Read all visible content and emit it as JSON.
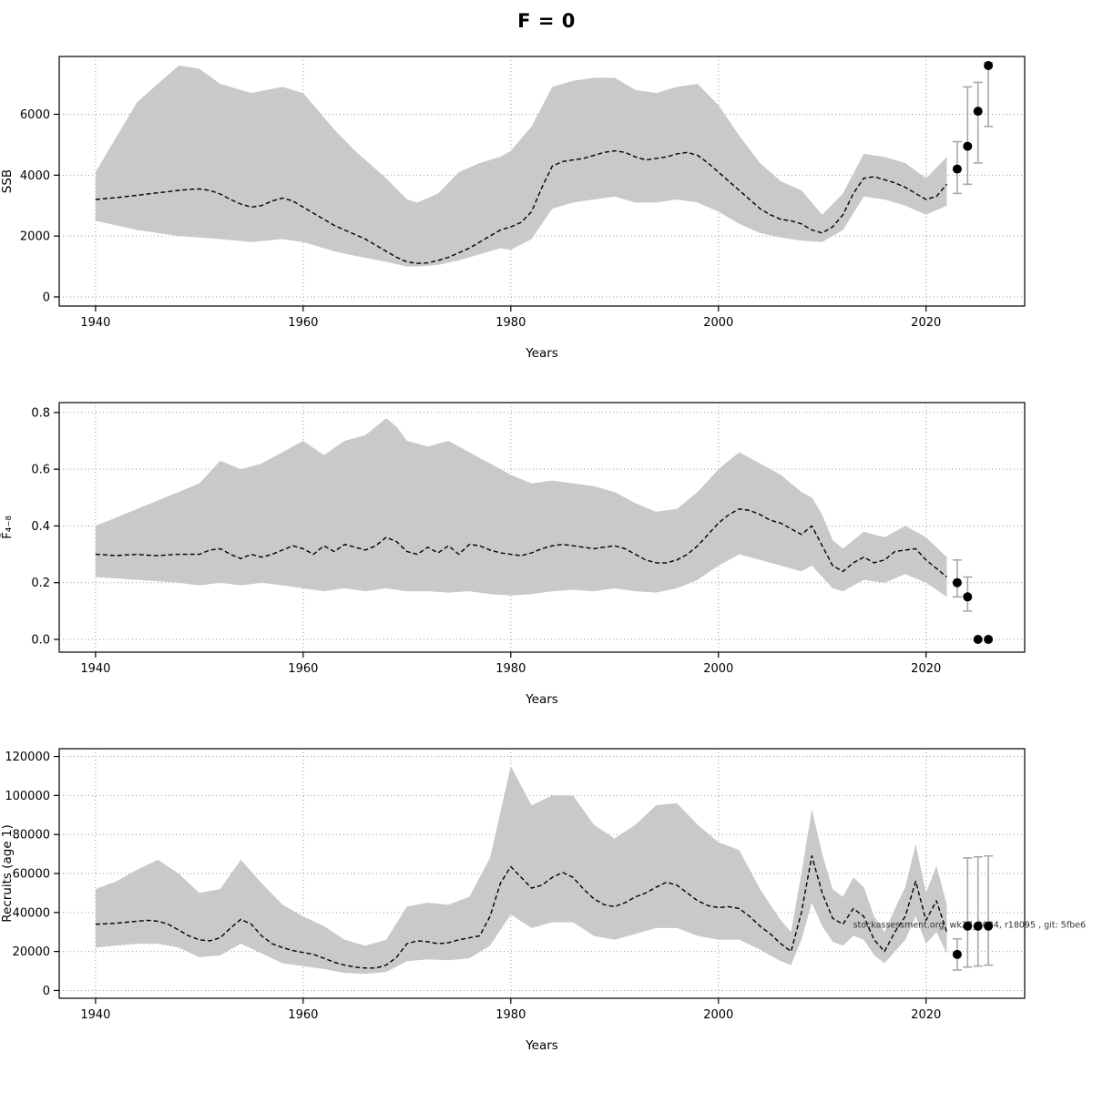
{
  "title": "F = 0",
  "watermark": "stockassessment.org, wk27_2024, r18095 , git: 5fbe6",
  "colors": {
    "band": "#c9c9c9",
    "median": "#000000",
    "error_bar": "#a8a8a8",
    "forecast_dot": "#000000"
  },
  "chart_data": [
    {
      "type": "line",
      "panel": "ssb",
      "svg_name": "ssb-chart",
      "xlabel": "Years",
      "ylabel": "SSB",
      "xlim": [
        1936.5,
        2029.5
      ],
      "ylim": [
        -300,
        7900
      ],
      "xticks": [
        1940,
        1960,
        1980,
        2000,
        2020
      ],
      "yticks": {
        "values": [
          0,
          2000,
          4000,
          6000
        ],
        "labels": [
          "0",
          "2000",
          "4000",
          "6000"
        ]
      },
      "grid": true,
      "band": {
        "years": [
          1940,
          1944,
          1948,
          1950,
          1952,
          1955,
          1958,
          1960,
          1963,
          1965,
          1968,
          1970,
          1971,
          1973,
          1975,
          1977,
          1979,
          1980,
          1982,
          1984,
          1986,
          1988,
          1990,
          1992,
          1994,
          1996,
          1998,
          2000,
          2002,
          2004,
          2006,
          2008,
          2010,
          2012,
          2014,
          2016,
          2018,
          2020,
          2022
        ],
        "lo": [
          2500,
          2200,
          2000,
          1950,
          1900,
          1800,
          1900,
          1800,
          1500,
          1350,
          1150,
          1000,
          1000,
          1050,
          1200,
          1400,
          1600,
          1550,
          1900,
          2900,
          3100,
          3200,
          3300,
          3100,
          3100,
          3200,
          3100,
          2800,
          2400,
          2100,
          1950,
          1850,
          1800,
          2200,
          3300,
          3200,
          3000,
          2700,
          3000
        ],
        "hi": [
          4100,
          6400,
          7600,
          7500,
          7000,
          6700,
          6900,
          6700,
          5500,
          4800,
          3900,
          3200,
          3100,
          3400,
          4100,
          4400,
          4600,
          4800,
          5600,
          6900,
          7100,
          7200,
          7200,
          6800,
          6700,
          6900,
          7000,
          6300,
          5300,
          4400,
          3800,
          3500,
          2700,
          3400,
          4700,
          4600,
          4400,
          3900,
          4600
        ]
      },
      "median": {
        "year_start": 1940,
        "values": [
          3200,
          3230,
          3260,
          3300,
          3340,
          3380,
          3420,
          3460,
          3500,
          3530,
          3550,
          3500,
          3380,
          3200,
          3050,
          2950,
          3000,
          3150,
          3250,
          3150,
          2950,
          2750,
          2550,
          2350,
          2200,
          2050,
          1900,
          1700,
          1500,
          1300,
          1150,
          1100,
          1120,
          1200,
          1300,
          1450,
          1600,
          1800,
          2000,
          2200,
          2300,
          2450,
          2800,
          3600,
          4300,
          4450,
          4500,
          4550,
          4650,
          4750,
          4800,
          4750,
          4600,
          4500,
          4550,
          4600,
          4700,
          4750,
          4650,
          4400,
          4100,
          3800,
          3500,
          3200,
          2900,
          2700,
          2550,
          2500,
          2400,
          2200,
          2100,
          2300,
          2700,
          3400,
          3900,
          3950,
          3850,
          3750,
          3600,
          3400,
          3200,
          3300,
          3700
        ]
      },
      "forecast": {
        "years": [
          2023,
          2024,
          2025,
          2026
        ],
        "values": [
          4200,
          4950,
          6100,
          7600
        ],
        "lo": [
          3400,
          3700,
          4400,
          5600
        ],
        "hi": [
          5100,
          6900,
          7050,
          7700
        ]
      }
    },
    {
      "type": "line",
      "panel": "f",
      "svg_name": "f-chart",
      "xlabel": "Years",
      "ylabel": "F̄₄₋₈",
      "xlim": [
        1936.5,
        2029.5
      ],
      "ylim": [
        -0.045,
        0.835
      ],
      "xticks": [
        1940,
        1960,
        1980,
        2000,
        2020
      ],
      "yticks": {
        "values": [
          0.0,
          0.2,
          0.4,
          0.6,
          0.8
        ],
        "labels": [
          "0.0",
          "0.2",
          "0.4",
          "0.6",
          "0.8"
        ]
      },
      "grid": true,
      "band": {
        "years": [
          1940,
          1944,
          1948,
          1950,
          1952,
          1954,
          1956,
          1958,
          1960,
          1962,
          1964,
          1966,
          1968,
          1969,
          1970,
          1972,
          1974,
          1976,
          1978,
          1980,
          1982,
          1984,
          1986,
          1988,
          1990,
          1992,
          1994,
          1996,
          1998,
          2000,
          2002,
          2004,
          2006,
          2008,
          2009,
          2010,
          2011,
          2012,
          2014,
          2016,
          2018,
          2020,
          2022
        ],
        "lo": [
          0.22,
          0.21,
          0.2,
          0.19,
          0.2,
          0.19,
          0.2,
          0.19,
          0.18,
          0.17,
          0.18,
          0.17,
          0.18,
          0.175,
          0.17,
          0.17,
          0.165,
          0.17,
          0.16,
          0.155,
          0.16,
          0.17,
          0.175,
          0.17,
          0.18,
          0.17,
          0.165,
          0.18,
          0.21,
          0.26,
          0.3,
          0.28,
          0.26,
          0.24,
          0.26,
          0.22,
          0.18,
          0.17,
          0.21,
          0.2,
          0.23,
          0.2,
          0.15
        ],
        "hi": [
          0.4,
          0.46,
          0.52,
          0.55,
          0.63,
          0.6,
          0.62,
          0.66,
          0.7,
          0.65,
          0.7,
          0.72,
          0.78,
          0.75,
          0.7,
          0.68,
          0.7,
          0.66,
          0.62,
          0.58,
          0.55,
          0.56,
          0.55,
          0.54,
          0.52,
          0.48,
          0.45,
          0.46,
          0.52,
          0.6,
          0.66,
          0.62,
          0.58,
          0.52,
          0.5,
          0.44,
          0.35,
          0.32,
          0.38,
          0.36,
          0.4,
          0.36,
          0.29
        ]
      },
      "median": {
        "year_start": 1940,
        "values": [
          0.3,
          0.298,
          0.295,
          0.298,
          0.3,
          0.297,
          0.295,
          0.298,
          0.3,
          0.3,
          0.3,
          0.315,
          0.32,
          0.3,
          0.285,
          0.3,
          0.29,
          0.3,
          0.315,
          0.33,
          0.32,
          0.3,
          0.33,
          0.31,
          0.335,
          0.325,
          0.315,
          0.33,
          0.36,
          0.345,
          0.31,
          0.3,
          0.325,
          0.305,
          0.33,
          0.3,
          0.335,
          0.33,
          0.315,
          0.305,
          0.3,
          0.295,
          0.305,
          0.32,
          0.33,
          0.335,
          0.33,
          0.325,
          0.32,
          0.325,
          0.33,
          0.32,
          0.3,
          0.28,
          0.27,
          0.27,
          0.28,
          0.3,
          0.33,
          0.37,
          0.41,
          0.44,
          0.46,
          0.455,
          0.44,
          0.42,
          0.41,
          0.39,
          0.37,
          0.4,
          0.33,
          0.26,
          0.24,
          0.27,
          0.29,
          0.27,
          0.28,
          0.31,
          0.315,
          0.32,
          0.28,
          0.25,
          0.22
        ]
      },
      "forecast": {
        "years": [
          2023,
          2024,
          2025,
          2026
        ],
        "values": [
          0.2,
          0.15,
          0.0,
          0.0
        ],
        "lo": [
          0.15,
          0.1,
          0.0,
          0.0
        ],
        "hi": [
          0.28,
          0.22,
          0.0,
          0.0
        ]
      }
    },
    {
      "type": "line",
      "panel": "recruits",
      "svg_name": "recruits-chart",
      "xlabel": "Years",
      "ylabel": "Recruits (age 1)",
      "xlim": [
        1936.5,
        2029.5
      ],
      "ylim": [
        -4000,
        124000
      ],
      "xticks": [
        1940,
        1960,
        1980,
        2000,
        2020
      ],
      "yticks": {
        "values": [
          0,
          20000,
          40000,
          60000,
          80000,
          100000,
          120000
        ],
        "labels": [
          "0",
          "20000",
          "40000",
          "60000",
          "80000",
          "100000",
          "120000"
        ]
      },
      "grid": true,
      "band": {
        "years": [
          1940,
          1942,
          1944,
          1946,
          1948,
          1950,
          1952,
          1954,
          1956,
          1958,
          1960,
          1962,
          1964,
          1966,
          1968,
          1970,
          1972,
          1974,
          1976,
          1978,
          1980,
          1982,
          1984,
          1986,
          1988,
          1990,
          1992,
          1994,
          1996,
          1998,
          2000,
          2002,
          2004,
          2006,
          2007,
          2008,
          2009,
          2010,
          2011,
          2012,
          2013,
          2014,
          2015,
          2016,
          2017,
          2018,
          2019,
          2020,
          2021,
          2022
        ],
        "lo": [
          22000,
          23000,
          24000,
          24000,
          22000,
          17000,
          18000,
          24000,
          19000,
          14000,
          12500,
          11000,
          9000,
          8500,
          9500,
          15000,
          16000,
          15500,
          16500,
          23000,
          39000,
          32000,
          35000,
          35000,
          28000,
          26000,
          29000,
          32000,
          32000,
          28000,
          26000,
          26000,
          21000,
          15000,
          13000,
          26000,
          45000,
          33000,
          25000,
          23000,
          28000,
          26000,
          18000,
          14000,
          20000,
          26000,
          38000,
          24000,
          30000,
          19000
        ],
        "hi": [
          52000,
          56000,
          62000,
          67000,
          60000,
          50000,
          52000,
          67000,
          55000,
          44000,
          38000,
          33000,
          26000,
          23000,
          26000,
          43000,
          45000,
          44000,
          48000,
          68000,
          115000,
          95000,
          100000,
          100000,
          85000,
          78000,
          85000,
          95000,
          96000,
          85000,
          76000,
          72000,
          52000,
          36000,
          30000,
          60000,
          93000,
          70000,
          52000,
          48000,
          58000,
          53000,
          38000,
          30000,
          42000,
          53000,
          75000,
          50000,
          64000,
          44000
        ]
      },
      "median": {
        "year_start": 1940,
        "values": [
          34000,
          34200,
          34500,
          35000,
          35500,
          36000,
          35500,
          34000,
          31000,
          28000,
          26000,
          25500,
          27000,
          32000,
          36500,
          34000,
          28000,
          24000,
          22000,
          20500,
          19500,
          18500,
          16500,
          14500,
          13000,
          12000,
          11500,
          11500,
          13000,
          17000,
          24000,
          25500,
          25000,
          24000,
          24500,
          26000,
          27000,
          28000,
          38000,
          55000,
          63500,
          58000,
          52500,
          54000,
          58000,
          60500,
          58000,
          52000,
          47000,
          44000,
          43000,
          45000,
          48000,
          50000,
          53000,
          55500,
          54000,
          50000,
          46000,
          43500,
          42500,
          43000,
          42000,
          38000,
          33000,
          29000,
          24000,
          20000,
          40000,
          69000,
          50000,
          37000,
          34000,
          42000,
          38000,
          26000,
          20000,
          30000,
          38000,
          56000,
          36000,
          46000,
          30000
        ]
      },
      "forecast": {
        "years": [
          2023,
          2024,
          2025,
          2026
        ],
        "values": [
          18500,
          33000,
          33000,
          33000
        ],
        "lo": [
          10500,
          12000,
          12500,
          13000
        ],
        "hi": [
          26500,
          68000,
          68500,
          69000
        ]
      },
      "watermark": {
        "y_value": 33500
      }
    }
  ]
}
